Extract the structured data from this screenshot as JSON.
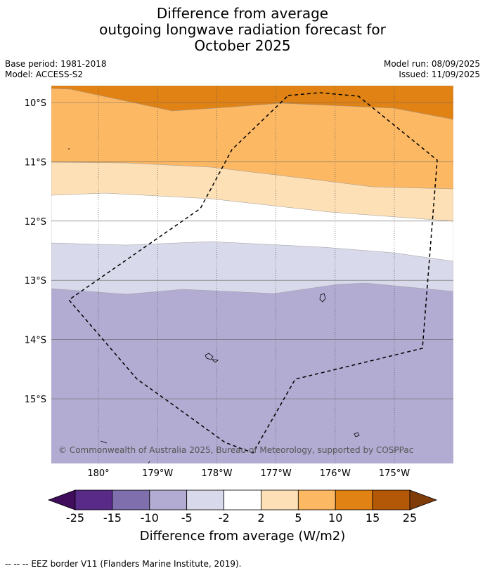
{
  "title": {
    "line1": "Difference from average",
    "line2": "outgoing longwave radiation forecast for",
    "line3": "October 2025"
  },
  "meta": {
    "base_period": "Base period: 1981-2018",
    "model": "Model: ACCESS-S2",
    "model_run": "Model run: 08/09/2025",
    "issued": "Issued: 11/09/2025"
  },
  "map": {
    "lon_ticks": [
      {
        "lon": 180,
        "label": "180°"
      },
      {
        "lon": 181,
        "label": "179°W"
      },
      {
        "lon": 182,
        "label": "178°W"
      },
      {
        "lon": 183,
        "label": "177°W"
      },
      {
        "lon": 184,
        "label": "176°W"
      },
      {
        "lon": 185,
        "label": "175°W"
      }
    ],
    "lat_ticks": [
      {
        "lat": -10,
        "label": "10°S"
      },
      {
        "lat": -11,
        "label": "11°S"
      },
      {
        "lat": -12,
        "label": "12°S"
      },
      {
        "lat": -13,
        "label": "13°S"
      },
      {
        "lat": -14,
        "label": "14°S"
      },
      {
        "lat": -15,
        "label": "15°S"
      }
    ],
    "copyright": "© Commonwealth of Australia 2025, Bureau of Meteorology, supported by COSPPac"
  },
  "colorbar": {
    "tick_labels": [
      "-25",
      "-15",
      "-10",
      "-5",
      "-2",
      "2",
      "5",
      "10",
      "15",
      "25"
    ],
    "colors": [
      "#5a2a88",
      "#7f6fac",
      "#b2abd2",
      "#d8d9ea",
      "#ffffff",
      "#fee0b6",
      "#fdb863",
      "#e08214",
      "#b35806"
    ],
    "under_color": "#3f0d5c",
    "over_color": "#7f3b08",
    "label": "Difference from average (W/m2)"
  },
  "footer": "--  --  -- EEZ border V11 (Flanders Marine Institute, 2019)."
}
